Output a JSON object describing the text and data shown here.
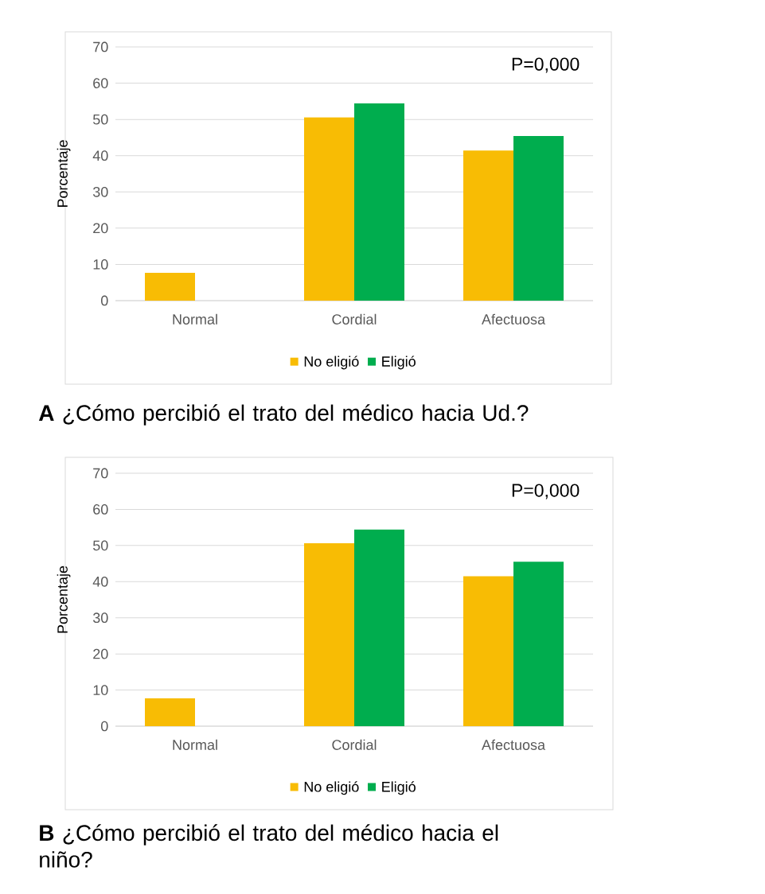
{
  "chart_data": [
    {
      "type": "bar",
      "title": "**A** ¿Cómo percibió el trato del médico hacia Ud.?",
      "ylabel": "Porcentaje",
      "categories": [
        "Normal",
        "Cordial",
        "Afectuosa"
      ],
      "series": [
        {
          "name": "No eligió",
          "color": "#f8bc04",
          "values": [
            7.7,
            50.6,
            41.4
          ]
        },
        {
          "name": "Eligió",
          "color": "#00ad4e",
          "values": [
            0,
            54.4,
            45.4
          ]
        }
      ],
      "ylim": [
        0,
        70
      ],
      "yticks": [
        0,
        10,
        20,
        30,
        40,
        50,
        60,
        70
      ],
      "grid": "y",
      "legend": "bottom",
      "annotations": [
        "P=0,000"
      ]
    },
    {
      "type": "bar",
      "title": "**B** ¿Cómo percibió el trato del médico hacia el niño?",
      "ylabel": "Porcentaje",
      "categories": [
        "Normal",
        "Cordial",
        "Afectuosa"
      ],
      "series": [
        {
          "name": "No eligió",
          "color": "#f8bc04",
          "values": [
            7.7,
            50.6,
            41.5
          ]
        },
        {
          "name": "Eligió",
          "color": "#00ad4e",
          "values": [
            0,
            54.4,
            45.5
          ]
        }
      ],
      "ylim": [
        0,
        70
      ],
      "yticks": [
        0,
        10,
        20,
        30,
        40,
        50,
        60,
        70
      ],
      "grid": "y",
      "legend": "bottom",
      "annotations": [
        "P=0,000"
      ]
    }
  ]
}
